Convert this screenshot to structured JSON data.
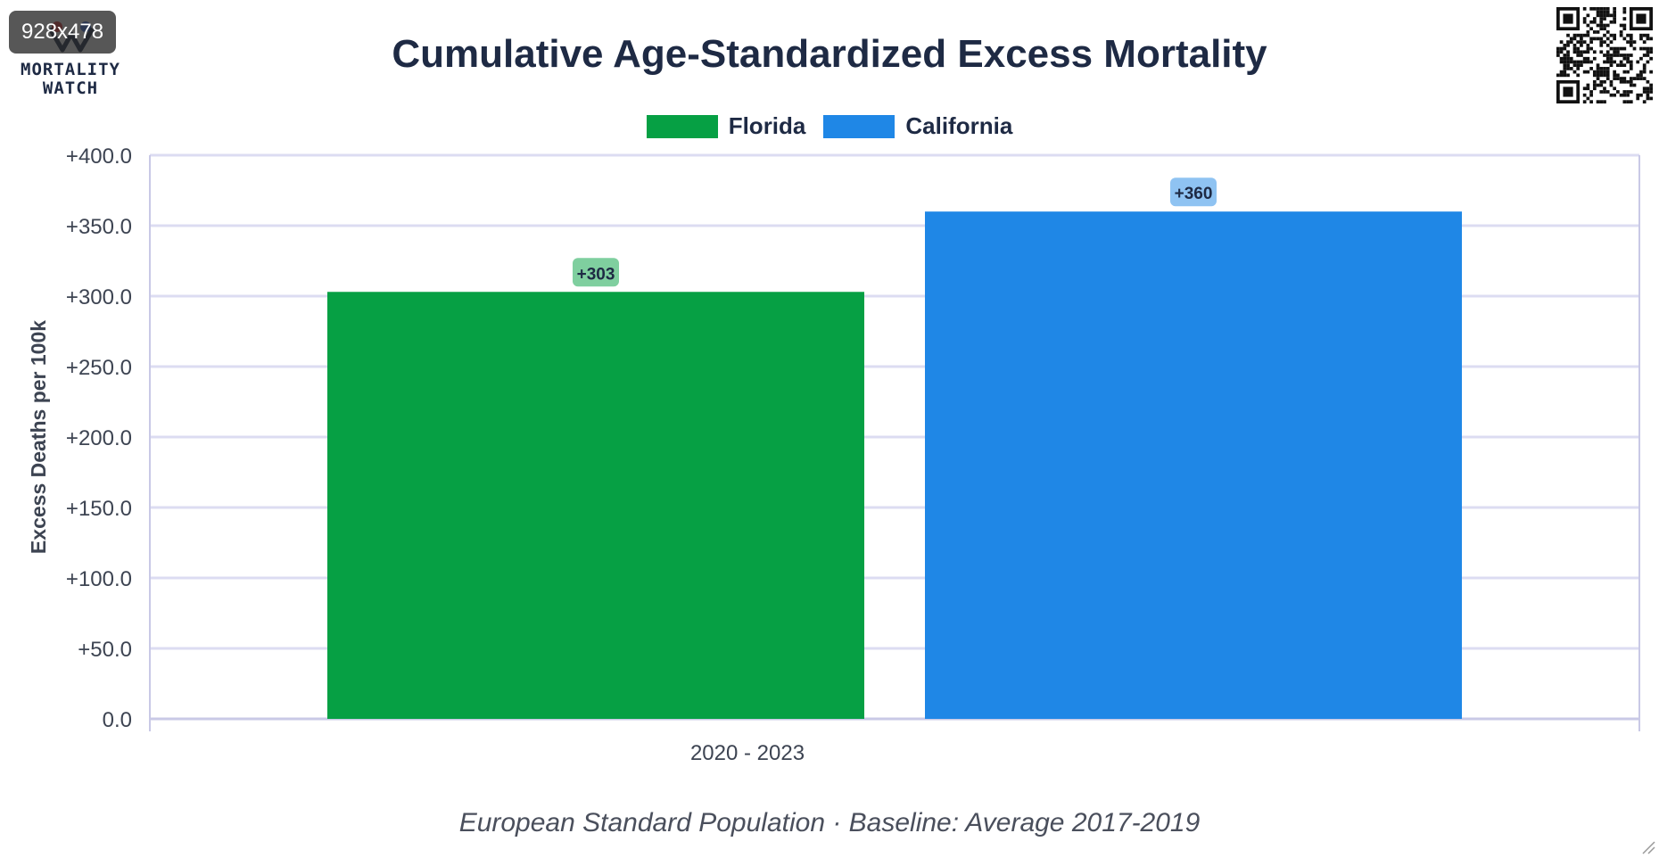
{
  "overlay": {
    "size_badge": "928x478"
  },
  "brand": {
    "logo_line1": "MORTALITY",
    "logo_line2": "WATCH"
  },
  "colors": {
    "florida": "#06a044",
    "california": "#1f87e6",
    "florida_label_bg": "#7fcf9f",
    "california_label_bg": "#8fc3f2",
    "grid": "#dcdcf2",
    "axis": "#c9c9e6",
    "text": "#1e2a44"
  },
  "footer_text": "European Standard Population · Baseline: Average 2017-2019",
  "chart_data": {
    "type": "bar",
    "title": "Cumulative Age-Standardized Excess Mortality",
    "xlabel": "",
    "ylabel": "Excess Deaths per 100k",
    "categories": [
      "2020 - 2023"
    ],
    "series": [
      {
        "name": "Florida",
        "values": [
          303
        ],
        "data_label": "+303",
        "color": "#06a044"
      },
      {
        "name": "California",
        "values": [
          360
        ],
        "data_label": "+360",
        "color": "#1f87e6"
      }
    ],
    "ylim": [
      0,
      400
    ],
    "yticks": [
      {
        "value": 0,
        "label": "0.0"
      },
      {
        "value": 50,
        "label": "+50.0"
      },
      {
        "value": 100,
        "label": "+100.0"
      },
      {
        "value": 150,
        "label": "+150.0"
      },
      {
        "value": 200,
        "label": "+200.0"
      },
      {
        "value": 250,
        "label": "+250.0"
      },
      {
        "value": 300,
        "label": "+300.0"
      },
      {
        "value": 350,
        "label": "+350.0"
      },
      {
        "value": 400,
        "label": "+400.0"
      }
    ],
    "grid": true,
    "legend_position": "top-center"
  }
}
